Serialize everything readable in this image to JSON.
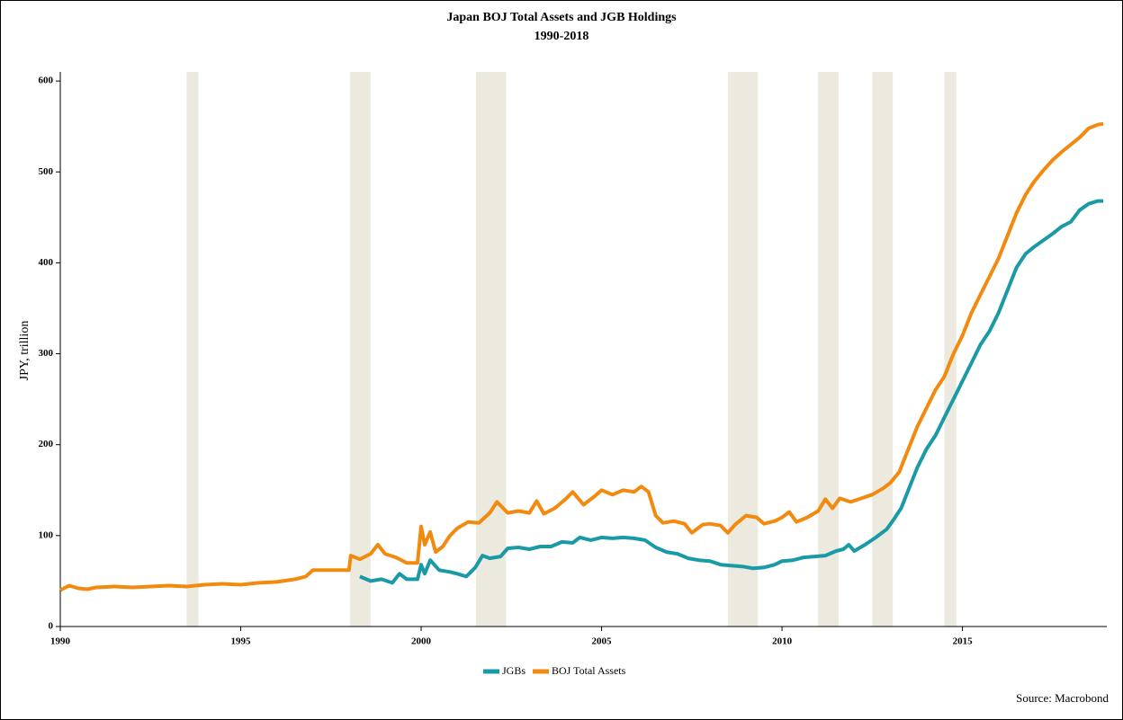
{
  "chart_data": {
    "type": "line",
    "title": "Japan BOJ Total Assets and JGB Holdings",
    "subtitle": "1990-2018",
    "y_label": "JPY, trillion",
    "source": "Source: Macrobond",
    "xlim": [
      1990,
      2019
    ],
    "xticks": [
      1990,
      1995,
      2000,
      2005,
      2010,
      2015
    ],
    "ylim": [
      0,
      610
    ],
    "yticks": [
      0,
      100,
      200,
      300,
      400,
      500,
      600
    ],
    "shaded_color": "#ece9df",
    "shaded_periods": [
      [
        1993.5,
        1993.83
      ],
      [
        1998.03,
        1998.6
      ],
      [
        2001.52,
        2002.35
      ],
      [
        2008.5,
        2009.33
      ],
      [
        2011.0,
        2011.57
      ],
      [
        2012.5,
        2013.07
      ],
      [
        2014.5,
        2014.83
      ]
    ],
    "legend": "bottom",
    "series": [
      {
        "name": "JGBs",
        "color": "#1a9aa6",
        "x": [
          1998.3,
          1998.6,
          1998.9,
          1999.2,
          1999.4,
          1999.6,
          1999.9,
          2000.0,
          2000.1,
          2000.25,
          2000.5,
          2000.8,
          2001.0,
          2001.25,
          2001.5,
          2001.7,
          2001.9,
          2002.2,
          2002.4,
          2002.7,
          2003.0,
          2003.3,
          2003.6,
          2003.9,
          2004.2,
          2004.4,
          2004.7,
          2005.0,
          2005.3,
          2005.6,
          2005.9,
          2006.2,
          2006.5,
          2006.8,
          2007.1,
          2007.4,
          2007.7,
          2008.0,
          2008.3,
          2008.6,
          2008.9,
          2009.2,
          2009.5,
          2009.8,
          2010.0,
          2010.3,
          2010.6,
          2010.9,
          2011.2,
          2011.5,
          2011.7,
          2011.85,
          2012.0,
          2012.3,
          2012.6,
          2012.9,
          2013.1,
          2013.3,
          2013.5,
          2013.75,
          2014.0,
          2014.25,
          2014.5,
          2014.75,
          2015.0,
          2015.25,
          2015.5,
          2015.75,
          2016.0,
          2016.25,
          2016.5,
          2016.75,
          2017.0,
          2017.25,
          2017.5,
          2017.75,
          2018.0,
          2018.25,
          2018.5,
          2018.75,
          2018.9
        ],
        "values": [
          55,
          50,
          52,
          48,
          58,
          52,
          52,
          68,
          58,
          73,
          62,
          60,
          58,
          55,
          65,
          78,
          75,
          77,
          86,
          87,
          85,
          88,
          88,
          93,
          92,
          98,
          95,
          98,
          97,
          98,
          97,
          95,
          87,
          82,
          80,
          75,
          73,
          72,
          68,
          67,
          66,
          64,
          65,
          68,
          72,
          73,
          76,
          77,
          78,
          83,
          85,
          90,
          83,
          90,
          98,
          107,
          118,
          130,
          150,
          175,
          195,
          210,
          230,
          250,
          270,
          290,
          310,
          325,
          345,
          370,
          395,
          410,
          418,
          425,
          432,
          440,
          445,
          458,
          465,
          468,
          468
        ]
      },
      {
        "name": "BOJ Total Assets",
        "color": "#f28a0f",
        "x": [
          1990.0,
          1990.25,
          1990.5,
          1990.75,
          1991.0,
          1991.5,
          1992.0,
          1992.5,
          1993.0,
          1993.5,
          1994.0,
          1994.5,
          1995.0,
          1995.5,
          1996.0,
          1996.5,
          1996.8,
          1997.0,
          1997.5,
          1998.0,
          1998.05,
          1998.3,
          1998.6,
          1998.8,
          1999.0,
          1999.3,
          1999.6,
          1999.9,
          2000.0,
          2000.1,
          2000.25,
          2000.4,
          2000.6,
          2000.8,
          2001.0,
          2001.3,
          2001.6,
          2001.9,
          2002.1,
          2002.4,
          2002.7,
          2003.0,
          2003.2,
          2003.4,
          2003.7,
          2004.0,
          2004.2,
          2004.5,
          2004.8,
          2005.0,
          2005.3,
          2005.6,
          2005.9,
          2006.1,
          2006.3,
          2006.5,
          2006.7,
          2007.0,
          2007.3,
          2007.5,
          2007.8,
          2008.0,
          2008.3,
          2008.5,
          2008.7,
          2009.0,
          2009.3,
          2009.5,
          2009.8,
          2010.0,
          2010.2,
          2010.4,
          2010.7,
          2011.0,
          2011.2,
          2011.4,
          2011.6,
          2011.9,
          2012.2,
          2012.5,
          2012.8,
          2013.0,
          2013.25,
          2013.5,
          2013.75,
          2014.0,
          2014.25,
          2014.5,
          2014.75,
          2015.0,
          2015.25,
          2015.5,
          2015.75,
          2016.0,
          2016.25,
          2016.5,
          2016.75,
          2017.0,
          2017.25,
          2017.5,
          2017.75,
          2018.0,
          2018.25,
          2018.5,
          2018.75,
          2018.9
        ],
        "values": [
          40,
          45,
          42,
          41,
          43,
          44,
          43,
          44,
          45,
          44,
          46,
          47,
          46,
          48,
          49,
          52,
          55,
          62,
          62,
          62,
          78,
          74,
          80,
          90,
          80,
          76,
          70,
          70,
          110,
          90,
          104,
          82,
          88,
          100,
          108,
          115,
          114,
          125,
          137,
          125,
          127,
          125,
          138,
          124,
          130,
          140,
          148,
          134,
          143,
          150,
          145,
          150,
          148,
          154,
          148,
          122,
          114,
          116,
          113,
          103,
          112,
          113,
          111,
          103,
          112,
          122,
          120,
          113,
          116,
          120,
          126,
          115,
          120,
          127,
          140,
          130,
          141,
          137,
          141,
          145,
          152,
          158,
          170,
          195,
          220,
          240,
          260,
          275,
          300,
          320,
          345,
          365,
          385,
          405,
          430,
          455,
          475,
          490,
          502,
          513,
          522,
          530,
          538,
          548,
          552,
          553
        ]
      }
    ]
  }
}
